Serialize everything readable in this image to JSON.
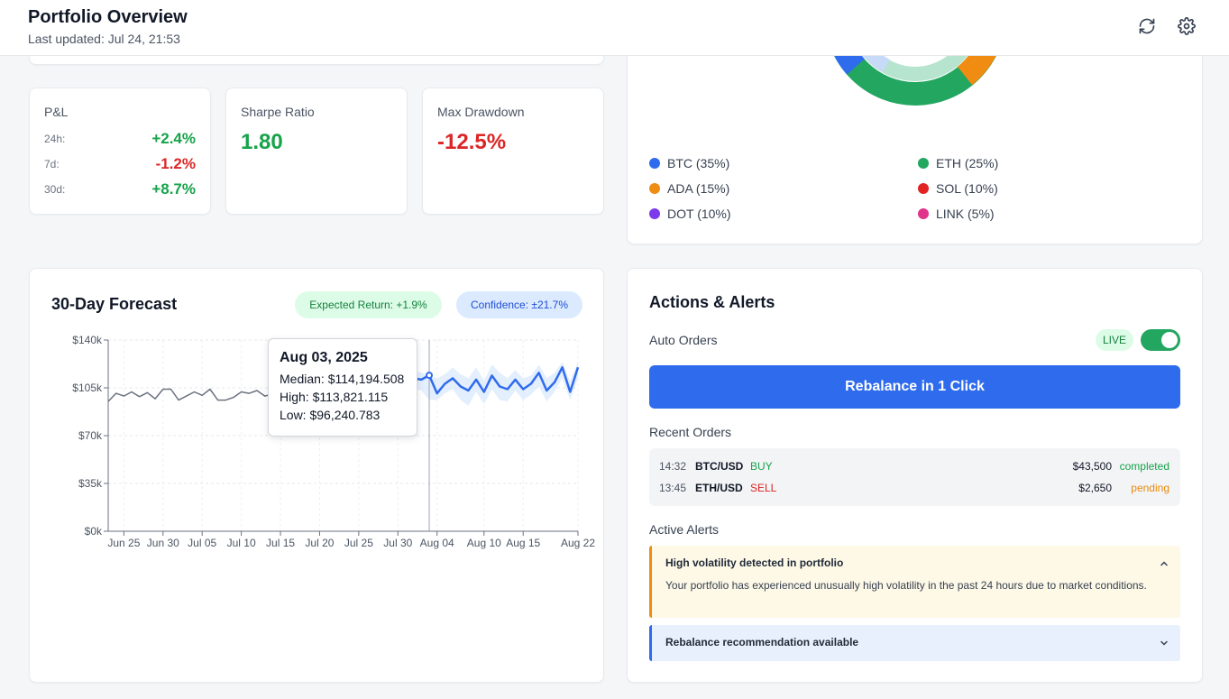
{
  "header": {
    "title": "Portfolio Overview",
    "last_updated": "Last updated: Jul 24, 21:53",
    "refresh_icon": "refresh-icon",
    "settings_icon": "gear-icon"
  },
  "pnl": {
    "label": "P&L",
    "rows": [
      {
        "period": "24h:",
        "value": "+2.4%",
        "tone": "positive"
      },
      {
        "period": "7d:",
        "value": "-1.2%",
        "tone": "negative"
      },
      {
        "period": "30d:",
        "value": "+8.7%",
        "tone": "positive"
      }
    ]
  },
  "sharpe": {
    "label": "Sharpe Ratio",
    "value": "1.80"
  },
  "drawdown": {
    "label": "Max Drawdown",
    "value": "-12.5%"
  },
  "allocation": {
    "items": [
      {
        "label": "BTC (35%)",
        "color": "#2f6bed",
        "share": 35
      },
      {
        "label": "ETH (25%)",
        "color": "#22a660",
        "share": 25
      },
      {
        "label": "ADA (15%)",
        "color": "#f08c11",
        "share": 15
      },
      {
        "label": "SOL (10%)",
        "color": "#e02424",
        "share": 10
      },
      {
        "label": "DOT (10%)",
        "color": "#7c3aed",
        "share": 10
      },
      {
        "label": "LINK (5%)",
        "color": "#e0338a",
        "share": 5
      }
    ]
  },
  "forecast": {
    "title": "30-Day Forecast",
    "expected_return": "Expected Return: +1.9%",
    "confidence": "Confidence: ±21.7%",
    "tooltip": {
      "date": "Aug 03, 2025",
      "median": "Median: $114,194.508",
      "high": "High: $113,821.115",
      "low": "Low: $96,240.783"
    }
  },
  "chart_data": {
    "type": "line",
    "title": "30-Day Forecast",
    "xlabel": "",
    "ylabel": "",
    "ylim": [
      0,
      140000
    ],
    "y_ticks": [
      "$0k",
      "$35k",
      "$70k",
      "$105k",
      "$140k"
    ],
    "y_tick_values": [
      0,
      35000,
      70000,
      105000,
      140000
    ],
    "x_ticks": [
      "Jun 25",
      "Jun 30",
      "Jul 05",
      "Jul 10",
      "Jul 15",
      "Jul 20",
      "Jul 25",
      "Jul 30",
      "Aug 04",
      "Aug 10",
      "Aug 15",
      "Aug 22"
    ],
    "x_start": "Jun 23",
    "x_end": "Aug 22",
    "grid": true,
    "series": [
      {
        "name": "",
        "color": "#6b7280",
        "points": [
          [
            "Jun 23",
            95000
          ],
          [
            "Jun 24",
            101000
          ],
          [
            "Jun 25",
            99000
          ],
          [
            "Jun 26",
            102000
          ],
          [
            "Jun 27",
            98500
          ],
          [
            "Jun 28",
            101500
          ],
          [
            "Jun 29",
            97000
          ],
          [
            "Jun 30",
            104000
          ],
          [
            "Jul 01",
            104000
          ],
          [
            "Jul 02",
            96000
          ],
          [
            "Jul 03",
            99000
          ],
          [
            "Jul 04",
            102000
          ],
          [
            "Jul 05",
            99500
          ],
          [
            "Jul 06",
            104000
          ],
          [
            "Jul 07",
            96000
          ],
          [
            "Jul 08",
            96000
          ],
          [
            "Jul 09",
            98000
          ],
          [
            "Jul 10",
            102000
          ],
          [
            "Jul 11",
            101000
          ],
          [
            "Jul 12",
            103000
          ],
          [
            "Jul 13",
            99000
          ],
          [
            "Jul 14",
            100500
          ],
          [
            "Jul 15",
            99500
          ],
          [
            "Jul 16",
            101000
          ]
        ]
      },
      {
        "name": "",
        "color": "#2f6bed",
        "points": [
          [
            "Jul 31",
            108000
          ],
          [
            "Aug 01",
            112000
          ],
          [
            "Aug 02",
            111000
          ],
          [
            "Aug 03",
            114195
          ],
          [
            "Aug 04",
            101000
          ],
          [
            "Aug 05",
            108000
          ],
          [
            "Aug 06",
            112000
          ],
          [
            "Aug 07",
            106000
          ],
          [
            "Aug 08",
            103000
          ],
          [
            "Aug 09",
            111000
          ],
          [
            "Aug 10",
            102000
          ],
          [
            "Aug 11",
            114000
          ],
          [
            "Aug 12",
            106000
          ],
          [
            "Aug 13",
            104000
          ],
          [
            "Aug 14",
            111000
          ],
          [
            "Aug 15",
            104000
          ],
          [
            "Aug 16",
            108000
          ],
          [
            "Aug 17",
            116000
          ],
          [
            "Aug 18",
            103000
          ],
          [
            "Aug 19",
            109000
          ],
          [
            "Aug 20",
            120000
          ],
          [
            "Aug 21",
            102000
          ],
          [
            "Aug 22",
            120000
          ]
        ],
        "band_high": [
          113000,
          118000,
          116000,
          113821,
          112000,
          115000,
          120000,
          115000,
          112000,
          120000,
          110000,
          122000,
          116000,
          112000,
          118000,
          112000,
          114000,
          122000,
          112000,
          116000,
          124000,
          110000,
          124000
        ],
        "band_low": [
          100000,
          104000,
          103000,
          96241,
          96000,
          101000,
          104000,
          96000,
          92000,
          102000,
          93000,
          104000,
          96000,
          95000,
          103000,
          96000,
          100000,
          106000,
          95000,
          102000,
          112000,
          96000,
          112000
        ]
      }
    ]
  },
  "actions": {
    "title": "Actions & Alerts",
    "auto_orders_label": "Auto Orders",
    "live_badge": "LIVE",
    "auto_orders_enabled": true,
    "rebalance_button": "Rebalance in 1 Click",
    "recent_orders_label": "Recent Orders",
    "orders": [
      {
        "time": "14:32",
        "pair": "BTC/USD",
        "side": "BUY",
        "amount": "$43,500",
        "status": "completed"
      },
      {
        "time": "13:45",
        "pair": "ETH/USD",
        "side": "SELL",
        "amount": "$2,650",
        "status": "pending"
      }
    ],
    "active_alerts_label": "Active Alerts",
    "alerts": [
      {
        "title": "High volatility detected in portfolio",
        "body": "Your portfolio has experienced unusually high volatility in the past 24 hours due to market conditions.",
        "expanded": true,
        "icon": "chevron-up-icon"
      },
      {
        "title": "Rebalance recommendation available",
        "body": "",
        "expanded": false,
        "icon": "chevron-down-icon"
      }
    ]
  }
}
